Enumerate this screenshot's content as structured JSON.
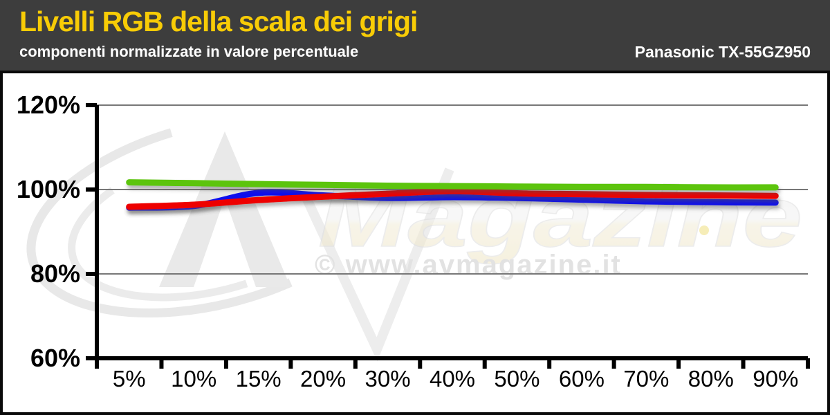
{
  "header": {
    "title": "Livelli RGB della scala dei grigi",
    "subtitle": "componenti normalizzate in valore percentuale",
    "device": "Panasonic TX-55GZ950"
  },
  "watermark": {
    "logo_text": "Magazine",
    "copyright_text": "© www.avmagazine.it"
  },
  "colors": {
    "header_bg": "#3D3D3D",
    "title_yellow": "#F8CC06",
    "subtitle_white": "#FFFFFF",
    "plot_background": "#FFFFFF",
    "axis_black": "#000000",
    "gridline_gray": "#777777",
    "red_line": "#EE0000",
    "green_line": "#5CC410",
    "blue_line": "#1111EE"
  },
  "chart_data": {
    "type": "line",
    "title": "Livelli RGB della scala dei grigi",
    "subtitle": "componenti normalizzate in valore percentuale",
    "xlabel": "",
    "ylabel": "",
    "grid": true,
    "legend": false,
    "ylim": [
      60,
      120
    ],
    "y_ticks": [
      60,
      80,
      100,
      120
    ],
    "y_ticklabels": [
      "60%",
      "80%",
      "100%",
      "120%"
    ],
    "categories": [
      "5%",
      "10%",
      "15%",
      "20%",
      "30%",
      "40%",
      "50%",
      "60%",
      "70%",
      "80%",
      "90%"
    ],
    "series": [
      {
        "name": "blue",
        "color": "#1111EE",
        "values": [
          95.7,
          96.1,
          99.2,
          98.6,
          98.0,
          98.2,
          98.0,
          97.6,
          97.2,
          97.0,
          96.9
        ]
      },
      {
        "name": "red",
        "color": "#EE0000",
        "values": [
          95.9,
          96.4,
          97.5,
          98.3,
          99.0,
          99.6,
          99.1,
          98.9,
          98.7,
          98.6,
          98.5
        ]
      },
      {
        "name": "green",
        "color": "#5CC410",
        "values": [
          101.7,
          101.5,
          101.3,
          101.1,
          100.9,
          100.8,
          100.7,
          100.6,
          100.6,
          100.5,
          100.5
        ]
      }
    ]
  }
}
